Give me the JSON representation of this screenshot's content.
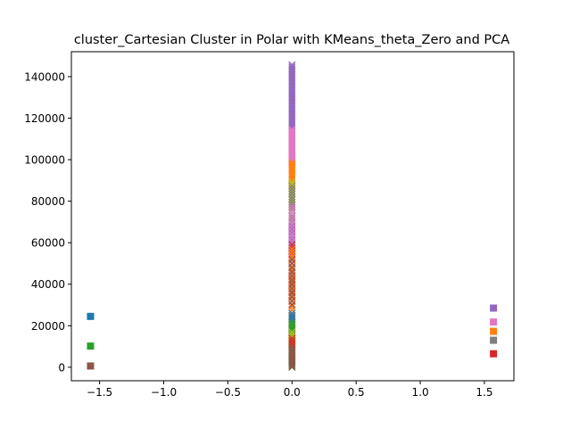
{
  "chart_data": {
    "type": "scatter",
    "title": "cluster_Cartesian Cluster in Polar with KMeans_theta_Zero and PCA",
    "xlabel": "",
    "ylabel": "",
    "xlim": [
      -1.72,
      1.73
    ],
    "ylim": [
      -6500,
      152000
    ],
    "grid": false,
    "x_ticks": [
      -1.5,
      -1.0,
      -0.5,
      0.0,
      0.5,
      1.0,
      1.5
    ],
    "x_tick_labels": [
      "−1.5",
      "−1.0",
      "−0.5",
      "0.0",
      "0.5",
      "1.0",
      "1.5"
    ],
    "y_ticks": [
      0,
      20000,
      40000,
      60000,
      80000,
      100000,
      120000,
      140000
    ],
    "y_tick_labels": [
      "0",
      "20000",
      "40000",
      "60000",
      "80000",
      "100000",
      "120000",
      "140000"
    ],
    "colors": {
      "blue": "#1f77b4",
      "orange": "#ff7f0e",
      "green": "#2ca02c",
      "red": "#d62728",
      "purple": "#9467bd",
      "brown": "#8c564b",
      "pink": "#e377c2",
      "gray": "#7f7f7f",
      "olive": "#bcbd22",
      "cyan": "#17becf"
    },
    "series": [
      {
        "marker": "square",
        "color": "#1f77b4",
        "points": [
          {
            "x": -1.5708,
            "y": 24500
          }
        ]
      },
      {
        "marker": "square",
        "color": "#2ca02c",
        "points": [
          {
            "x": -1.5708,
            "y": 10200
          }
        ]
      },
      {
        "marker": "square",
        "color": "#8c564b",
        "points": [
          {
            "x": -1.5708,
            "y": 600
          }
        ]
      },
      {
        "marker": "square",
        "color": "#9467bd",
        "points": [
          {
            "x": 1.5708,
            "y": 28500
          }
        ]
      },
      {
        "marker": "square",
        "color": "#e377c2",
        "points": [
          {
            "x": 1.5708,
            "y": 21800
          }
        ]
      },
      {
        "marker": "square",
        "color": "#ff7f0e",
        "points": [
          {
            "x": 1.5708,
            "y": 17300
          }
        ]
      },
      {
        "marker": "square",
        "color": "#7f7f7f",
        "points": [
          {
            "x": 1.5708,
            "y": 13000
          }
        ]
      },
      {
        "marker": "square",
        "color": "#d62728",
        "points": [
          {
            "x": 1.5708,
            "y": 6500
          }
        ]
      },
      {
        "marker": "x",
        "color": "#9467bd",
        "x": 0,
        "y_from": 115000,
        "y_to": 146000,
        "step": 700
      },
      {
        "marker": "x",
        "color": "#e377c2",
        "x": 0,
        "y_from": 99000,
        "y_to": 115000,
        "step": 600
      },
      {
        "marker": "x",
        "color": "#ff7f0e",
        "x": 0,
        "y_from": 86000,
        "y_to": 99000,
        "step": 700
      },
      {
        "marker": "x",
        "color": "#bcbd22",
        "x": 0,
        "y_from": 76000,
        "y_to": 90000,
        "step": 900
      },
      {
        "marker": "x",
        "color": "#7f7f7f",
        "x": 0,
        "y_from": 60000,
        "y_to": 88000,
        "step": 1300
      },
      {
        "marker": "x",
        "color": "#9467bd",
        "x": 0,
        "y_from": 55000,
        "y_to": 70000,
        "step": 1100
      },
      {
        "marker": "x",
        "color": "#e377c2",
        "x": 0,
        "y_from": 30000,
        "y_to": 78000,
        "step": 1700
      },
      {
        "marker": "x",
        "color": "#d62728",
        "x": 0,
        "y_from": 11000,
        "y_to": 60000,
        "step": 1500
      },
      {
        "marker": "x",
        "color": "#ff7f0e",
        "x": 0,
        "y_from": 15000,
        "y_to": 58000,
        "step": 1400
      },
      {
        "marker": "x",
        "color": "#1f77b4",
        "x": 0,
        "y_from": 22000,
        "y_to": 26000,
        "step": 1000
      },
      {
        "marker": "x",
        "color": "#8c564b",
        "x": 0,
        "y_from": 30000,
        "y_to": 52000,
        "step": 2000
      },
      {
        "marker": "x",
        "color": "#2ca02c",
        "x": 0,
        "y_from": 0,
        "y_to": 22000,
        "step": 800
      },
      {
        "marker": "x",
        "color": "#bcbd22",
        "x": 0,
        "y_from": 5000,
        "y_to": 17000,
        "step": 1200
      },
      {
        "marker": "x",
        "color": "#8c564b",
        "x": 0,
        "y_from": 0,
        "y_to": 10000,
        "step": 700
      },
      {
        "marker": "x",
        "color": "#d62728",
        "x": 0,
        "y_from": 11000,
        "y_to": 14000,
        "step": 1000
      }
    ]
  }
}
